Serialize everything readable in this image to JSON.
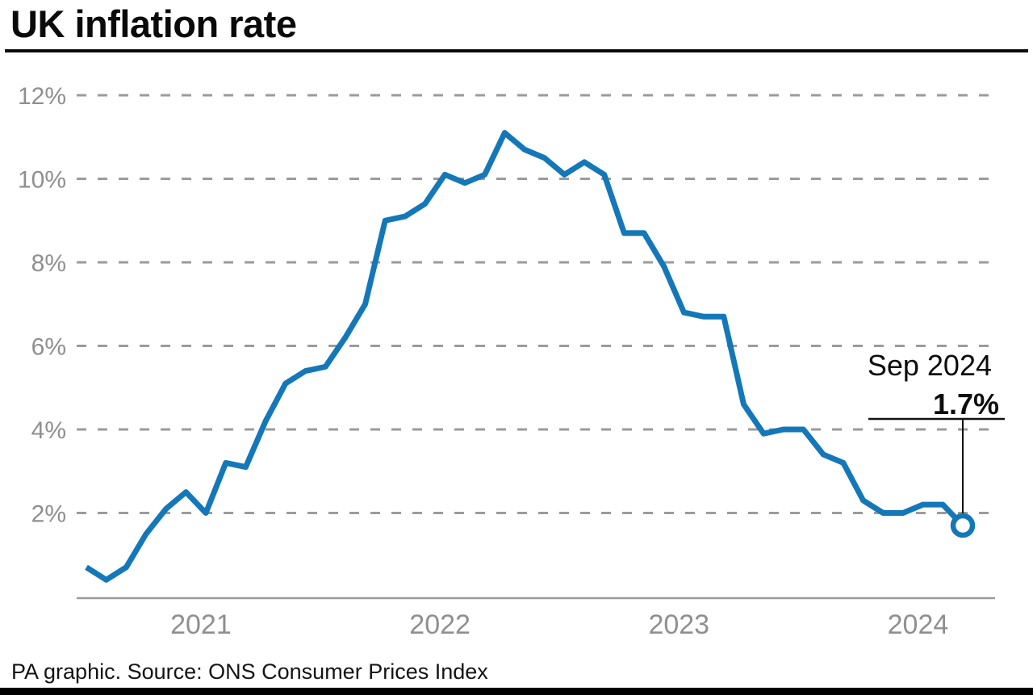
{
  "title": "UK inflation rate",
  "footer": {
    "source_line": "PA graphic. Source: ONS Consumer Prices Index"
  },
  "annotation": {
    "label": "Sep 2024",
    "value_label": "1.7%"
  },
  "chart_data": {
    "type": "line",
    "title": "UK inflation rate",
    "x": [
      "Jan 2021",
      "Feb 2021",
      "Mar 2021",
      "Apr 2021",
      "May 2021",
      "Jun 2021",
      "Jul 2021",
      "Aug 2021",
      "Sep 2021",
      "Oct 2021",
      "Nov 2021",
      "Dec 2021",
      "Jan 2022",
      "Feb 2022",
      "Mar 2022",
      "Apr 2022",
      "May 2022",
      "Jun 2022",
      "Jul 2022",
      "Aug 2022",
      "Sep 2022",
      "Oct 2022",
      "Nov 2022",
      "Dec 2022",
      "Jan 2023",
      "Feb 2023",
      "Mar 2023",
      "Apr 2023",
      "May 2023",
      "Jun 2023",
      "Jul 2023",
      "Aug 2023",
      "Sep 2023",
      "Oct 2023",
      "Nov 2023",
      "Dec 2023",
      "Jan 2024",
      "Feb 2024",
      "Mar 2024",
      "Apr 2024",
      "May 2024",
      "Jun 2024",
      "Jul 2024",
      "Aug 2024",
      "Sep 2024"
    ],
    "values": [
      0.7,
      0.4,
      0.7,
      1.5,
      2.1,
      2.5,
      2.0,
      3.2,
      3.1,
      4.2,
      5.1,
      5.4,
      5.5,
      6.2,
      7.0,
      9.0,
      9.1,
      9.4,
      10.1,
      9.9,
      10.1,
      11.1,
      10.7,
      10.5,
      10.1,
      10.4,
      10.1,
      8.7,
      8.7,
      7.9,
      6.8,
      6.7,
      6.7,
      4.6,
      3.9,
      4.0,
      4.0,
      3.4,
      3.2,
      2.3,
      2.0,
      2.0,
      2.2,
      2.2,
      1.7
    ],
    "x_tick_labels": [
      "2021",
      "2022",
      "2023",
      "2024"
    ],
    "yticks": [
      2,
      4,
      6,
      8,
      10,
      12
    ],
    "ytick_labels": [
      "2%",
      "4%",
      "6%",
      "8%",
      "10%",
      "12%"
    ],
    "ylim": [
      0,
      12.4
    ],
    "grid": "horizontal dashed",
    "legend": "none",
    "annotation": {
      "label": "Sep 2024",
      "value": 1.7,
      "value_label": "1.7%"
    },
    "line_color": "#1478b8",
    "grid_color": "#9b9b9b",
    "label_color": "#8f8f8f"
  }
}
